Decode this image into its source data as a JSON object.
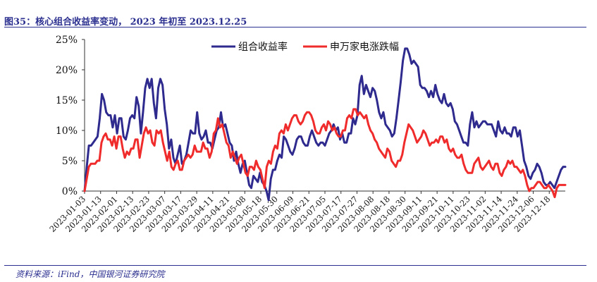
{
  "header": {
    "title": "图35：核心组合收益率变动， 2023 年初至 2023.12.25"
  },
  "footer": {
    "source": "资料来源：iFind，中国银河证券研究院"
  },
  "colors": {
    "portfolio": "#2e2a8e",
    "index": "#f02b2b",
    "rule": "#2b2f8f"
  },
  "chart_data": {
    "type": "line",
    "y_ticks": [
      "0%",
      "5%",
      "10%",
      "15%",
      "20%",
      "25%"
    ],
    "ylim": [
      0,
      25
    ],
    "x_ticks": [
      "2023-01-03",
      "2023-01-13",
      "2023-02-01",
      "2023-02-13",
      "2023-02-23",
      "2023-03-07",
      "2023-03-17",
      "2023-03-29",
      "2023-04-11",
      "2023-04-21",
      "2023-05-08",
      "2023-05-18",
      "2023-05-30",
      "2023-06-09",
      "2023-06-21",
      "2023-07-05",
      "2023-07-17",
      "2023-07-27",
      "2023-08-08",
      "2023-08-18",
      "2023-08-30",
      "2023-09-11",
      "2023-09-21",
      "2023-10-11",
      "2023-10-23",
      "2023-11-02",
      "2023-11-14",
      "2023-11-24",
      "2023-12-06",
      "2023-12-18"
    ],
    "legend_position": "top",
    "series": [
      {
        "name": "组合收益率",
        "values": [
          0,
          4,
          7.5,
          7.5,
          8,
          8.5,
          9,
          12,
          16,
          15,
          13,
          12.5,
          12.5,
          10.5,
          12.5,
          9.5,
          12,
          12,
          9,
          8.5,
          10,
          12,
          12.5,
          12,
          15.5,
          14,
          9.5,
          13,
          17,
          18.5,
          17,
          18.5,
          14.5,
          12,
          17,
          18.5,
          17.5,
          13.5,
          11,
          7,
          8.5,
          5.5,
          4.5,
          6,
          7.5,
          4.5,
          5,
          6,
          8,
          10,
          9.5,
          9.5,
          13,
          9.5,
          8.5,
          9,
          10,
          8,
          8,
          7,
          8.5,
          10,
          10.5,
          13,
          10.5,
          11,
          9.5,
          8,
          7.5,
          5,
          6.5,
          4.5,
          3,
          4.5,
          5,
          3,
          1,
          0.5,
          2.5,
          2,
          1.5,
          3,
          1.5,
          1,
          0,
          -1.5,
          2,
          3.5,
          3.5,
          5,
          6,
          5.5,
          9,
          8.5,
          7.5,
          6.5,
          6,
          7,
          8.5,
          9,
          9,
          8,
          7.5,
          7.5,
          9,
          10,
          9,
          8,
          7.5,
          8,
          8,
          7.5,
          8.5,
          9.5,
          10,
          11,
          10,
          10.5,
          8.5,
          9.5,
          8,
          8,
          9.5,
          9.5,
          12,
          11,
          12.5,
          17.5,
          19,
          16,
          17.5,
          16.5,
          15.5,
          17,
          16.5,
          15,
          13,
          12,
          13,
          11,
          10.5,
          10,
          9,
          9.5,
          12,
          15,
          18,
          21.5,
          23.5,
          23.5,
          22.5,
          21,
          21.5,
          21,
          20.5,
          17.5,
          17,
          17,
          16.5,
          15.5,
          16.5,
          15.5,
          17.5,
          16,
          15,
          14.5,
          16,
          14.5,
          14,
          14.5,
          13.5,
          11.5,
          11,
          10,
          9,
          8,
          8,
          7.5,
          11,
          13,
          10.5,
          11.5,
          10.5,
          11,
          11.5,
          11.5,
          11,
          11,
          11,
          10,
          9,
          11.5,
          10,
          9.5,
          10.5,
          9.5,
          9.5,
          9,
          10.5,
          10.5,
          9,
          10,
          7.5,
          5,
          4,
          2.5,
          2,
          3,
          3.5,
          4.5,
          4,
          3,
          1.5,
          1,
          1,
          1.5,
          1,
          0.5,
          1.5,
          2.5,
          3.5,
          4,
          4
        ]
      },
      {
        "name": "申万家电涨跌幅",
        "values": [
          0,
          2,
          4,
          4.5,
          4.5,
          4.5,
          5,
          5,
          8,
          9,
          9.5,
          8.5,
          8.5,
          7.5,
          9,
          7,
          9,
          9,
          7,
          5.5,
          6.5,
          6,
          7,
          7,
          8.5,
          8.5,
          5.5,
          7.5,
          9.5,
          10.5,
          9.5,
          10,
          8,
          7.5,
          10,
          9.5,
          10,
          8,
          6.5,
          5,
          6.5,
          4,
          3.5,
          4.5,
          5,
          3.5,
          3.5,
          5,
          5.5,
          6,
          5.5,
          6,
          7.5,
          6.5,
          6.5,
          6.5,
          8,
          7,
          7,
          5.5,
          6.5,
          9.5,
          10,
          12,
          10.5,
          11,
          9.5,
          8,
          7.5,
          5.5,
          6.5,
          5.5,
          4.5,
          5.5,
          6,
          4.5,
          3,
          2.5,
          4,
          4,
          3.5,
          5,
          4,
          3.5,
          2,
          0.5,
          4,
          5,
          4.5,
          6.5,
          7.5,
          7,
          9.5,
          10,
          9.5,
          11,
          10,
          11,
          12,
          12.5,
          12.5,
          11.5,
          11,
          11.5,
          12.5,
          13,
          13,
          12.5,
          11.5,
          10,
          9.5,
          9.5,
          10.5,
          11,
          10,
          11.5,
          11,
          10,
          10.5,
          9.5,
          9,
          9,
          10,
          10,
          12,
          12.5,
          12,
          13.5,
          13.5,
          12.5,
          13,
          12.5,
          12,
          12.5,
          11,
          10,
          9.5,
          8.5,
          8,
          7,
          6.5,
          6,
          5.5,
          7,
          6.5,
          5,
          4.5,
          4,
          5,
          5,
          6,
          8,
          9.5,
          11,
          10.5,
          10,
          9,
          8,
          8.5,
          9,
          10,
          9.5,
          8.5,
          7.5,
          8,
          8,
          8.5,
          8,
          9,
          9,
          8,
          8.5,
          7,
          6.5,
          7,
          6,
          5.5,
          5.5,
          6,
          4.5,
          3.5,
          3,
          3,
          3,
          4.5,
          5,
          5.5,
          4,
          3.5,
          4,
          4.5,
          5,
          4,
          3.5,
          4.5,
          4.5,
          3,
          2.5,
          3.5,
          4,
          5,
          4.5,
          5,
          4,
          4,
          3.5,
          3,
          3.5,
          2.5,
          1,
          0,
          0.5,
          0.5,
          1,
          1.5,
          1.5,
          1,
          0.5,
          0.5,
          1,
          0.5,
          0,
          -1,
          0.5,
          1,
          1,
          1,
          1
        ]
      }
    ]
  }
}
